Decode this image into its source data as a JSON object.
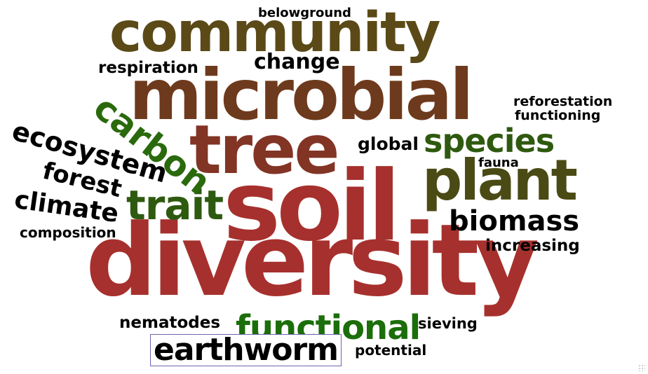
{
  "word_cloud": {
    "words": [
      {
        "text": "soil",
        "color": "#a6302d"
      },
      {
        "text": "diversity",
        "color": "#a6302d"
      },
      {
        "text": "microbial",
        "color": "#6e3a1d"
      },
      {
        "text": "community",
        "color": "#5b4a17"
      },
      {
        "text": "tree",
        "color": "#823425"
      },
      {
        "text": "plant",
        "color": "#4a4a14"
      },
      {
        "text": "species",
        "color": "#2e5a0f"
      },
      {
        "text": "functional",
        "color": "#1b6e09"
      },
      {
        "text": "trait",
        "color": "#2e5a10"
      },
      {
        "text": "carbon",
        "color": "#2a6a0c"
      },
      {
        "text": "earthworm",
        "color": "#000000",
        "highlighted": true
      },
      {
        "text": "biomass",
        "color": "#000000"
      },
      {
        "text": "ecosystem",
        "color": "#000000"
      },
      {
        "text": "forest",
        "color": "#000000"
      },
      {
        "text": "climate",
        "color": "#000000"
      },
      {
        "text": "change",
        "color": "#000000"
      },
      {
        "text": "respiration",
        "color": "#000000"
      },
      {
        "text": "belowground",
        "color": "#000000"
      },
      {
        "text": "reforestation",
        "color": "#000000"
      },
      {
        "text": "functioning",
        "color": "#000000"
      },
      {
        "text": "global",
        "color": "#000000"
      },
      {
        "text": "fauna",
        "color": "#000000"
      },
      {
        "text": "increasing",
        "color": "#000000"
      },
      {
        "text": "composition",
        "color": "#000000"
      },
      {
        "text": "nematodes",
        "color": "#000000"
      },
      {
        "text": "sieving",
        "color": "#000000"
      },
      {
        "text": "potential",
        "color": "#000000"
      }
    ]
  }
}
